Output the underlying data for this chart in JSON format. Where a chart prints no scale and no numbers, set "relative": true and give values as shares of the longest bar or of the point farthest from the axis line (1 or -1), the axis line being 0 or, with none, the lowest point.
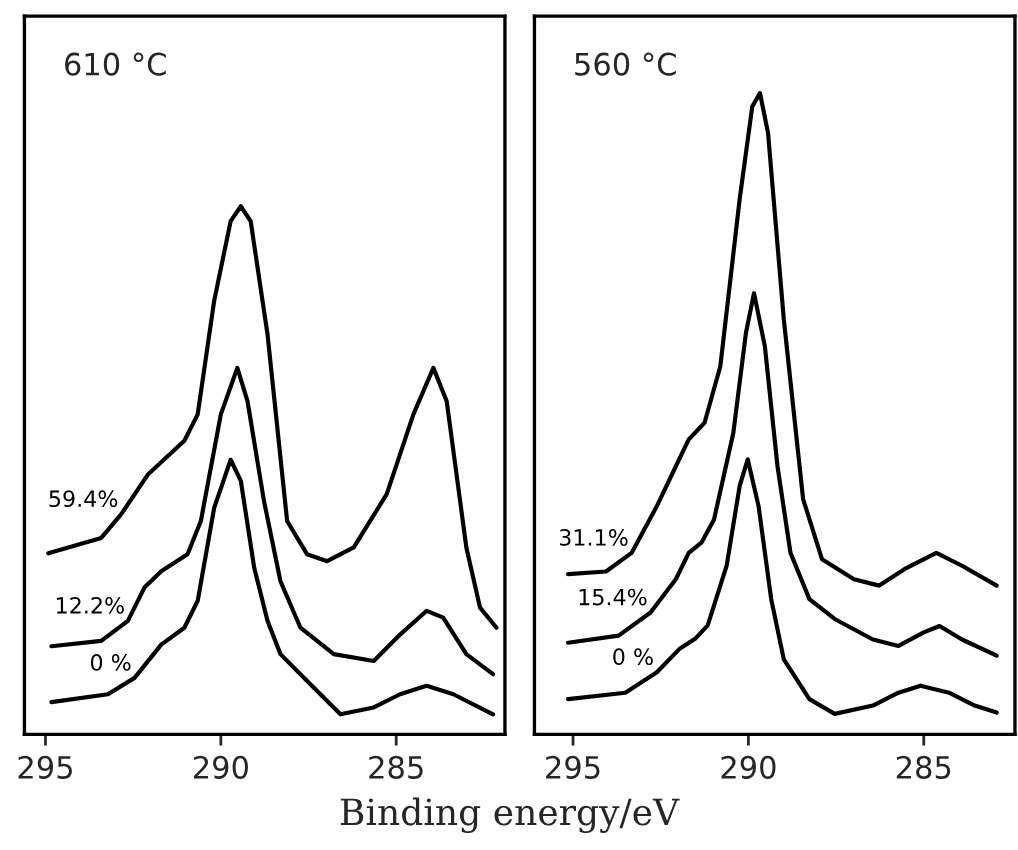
{
  "chart_data": [
    {
      "type": "line",
      "title": "610 °C",
      "xlabel": "Binding energy/eV",
      "relative": true,
      "xlim": [
        295.6,
        281.9
      ],
      "xticks": [
        295,
        290,
        285
      ],
      "tick_labels": "x",
      "grid": false,
      "legend": false,
      "series": [
        {
          "name": "59.4%",
          "color": "#000000",
          "x": [
            294.92,
            293.41,
            292.84,
            292.08,
            291.04,
            290.66,
            290.19,
            289.72,
            289.43,
            289.15,
            288.67,
            288.11,
            287.54,
            286.97,
            286.21,
            285.27,
            284.51,
            283.94,
            283.56,
            283.0,
            282.61,
            282.14
          ],
          "values": [
            0.343,
            0.372,
            0.417,
            0.492,
            0.556,
            0.606,
            0.821,
            0.972,
            1.0,
            0.972,
            0.758,
            0.404,
            0.341,
            0.328,
            0.354,
            0.455,
            0.606,
            0.694,
            0.631,
            0.354,
            0.24,
            0.202
          ]
        },
        {
          "name": "12.2%",
          "color": "#000000",
          "x": [
            294.83,
            293.41,
            292.65,
            292.18,
            291.7,
            290.95,
            290.57,
            290.0,
            289.53,
            289.24,
            288.77,
            288.3,
            287.73,
            286.78,
            285.64,
            284.89,
            284.13,
            283.66,
            283.0,
            282.24
          ],
          "values": [
            0.167,
            0.177,
            0.215,
            0.278,
            0.309,
            0.341,
            0.404,
            0.606,
            0.694,
            0.631,
            0.442,
            0.29,
            0.202,
            0.152,
            0.139,
            0.189,
            0.234,
            0.221,
            0.152,
            0.114
          ]
        },
        {
          "name": "0 %",
          "color": "#000000",
          "x": [
            294.83,
            293.22,
            292.46,
            291.7,
            291.04,
            290.66,
            290.19,
            289.72,
            289.43,
            289.05,
            288.67,
            288.3,
            287.54,
            286.59,
            285.64,
            284.89,
            284.13,
            283.37,
            282.24
          ],
          "values": [
            0.061,
            0.076,
            0.107,
            0.17,
            0.202,
            0.253,
            0.429,
            0.52,
            0.48,
            0.316,
            0.215,
            0.152,
            0.101,
            0.038,
            0.051,
            0.076,
            0.092,
            0.076,
            0.038
          ]
        }
      ]
    },
    {
      "type": "line",
      "title": "560 °C",
      "relative": true,
      "xlim": [
        296.1,
        282.4
      ],
      "xticks": [
        295,
        290,
        285
      ],
      "tick_labels": "x",
      "grid": false,
      "legend": false,
      "series": [
        {
          "name": "31.1%",
          "color": "#000000",
          "x": [
            295.14,
            294.06,
            293.33,
            292.61,
            292.07,
            291.7,
            291.25,
            290.8,
            290.25,
            289.89,
            289.67,
            289.44,
            288.99,
            288.44,
            287.9,
            286.99,
            286.27,
            285.54,
            284.64,
            283.91,
            282.92
          ],
          "values": [
            0.25,
            0.254,
            0.283,
            0.356,
            0.418,
            0.46,
            0.486,
            0.574,
            0.834,
            0.979,
            1.0,
            0.938,
            0.647,
            0.367,
            0.273,
            0.242,
            0.232,
            0.258,
            0.283,
            0.263,
            0.232
          ]
        },
        {
          "name": "15.4%",
          "color": "#000000",
          "x": [
            295.14,
            293.7,
            292.79,
            292.07,
            291.7,
            291.34,
            290.98,
            290.43,
            290.07,
            289.84,
            289.53,
            289.17,
            288.8,
            288.26,
            287.54,
            286.45,
            285.72,
            285.0,
            284.55,
            283.91,
            282.92
          ],
          "values": [
            0.143,
            0.154,
            0.19,
            0.242,
            0.283,
            0.299,
            0.335,
            0.47,
            0.626,
            0.688,
            0.605,
            0.418,
            0.283,
            0.211,
            0.18,
            0.148,
            0.138,
            0.159,
            0.169,
            0.148,
            0.123
          ]
        },
        {
          "name": "0 %",
          "color": "#000000",
          "x": [
            295.14,
            293.51,
            292.61,
            291.97,
            291.52,
            291.16,
            290.62,
            290.25,
            290.02,
            289.71,
            289.35,
            288.99,
            288.26,
            287.54,
            286.45,
            285.72,
            285.09,
            284.28,
            283.55,
            282.92
          ],
          "values": [
            0.055,
            0.065,
            0.097,
            0.133,
            0.149,
            0.17,
            0.263,
            0.387,
            0.429,
            0.356,
            0.211,
            0.117,
            0.055,
            0.032,
            0.045,
            0.065,
            0.076,
            0.065,
            0.045,
            0.034
          ]
        }
      ]
    }
  ]
}
